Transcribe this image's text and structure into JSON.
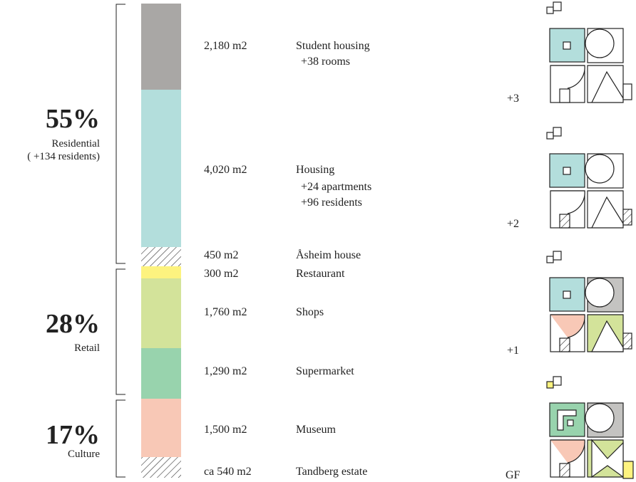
{
  "groups": [
    {
      "percent": "55%",
      "label": "Residential",
      "sublabel": "( +134 residents)"
    },
    {
      "percent": "28%",
      "label": "Retail",
      "sublabel": ""
    },
    {
      "percent": "17%",
      "label": "Culture",
      "sublabel": ""
    }
  ],
  "segments": [
    {
      "area": "2,180 m2",
      "name": "Student housing",
      "notes": [
        "+38 rooms"
      ],
      "color": "#a9a7a5"
    },
    {
      "area": "4,020 m2",
      "name": "Housing",
      "notes": [
        "+24 apartments",
        "+96 residents"
      ],
      "color": "#b3dedc"
    },
    {
      "area": "450 m2",
      "name": "Åsheim house",
      "notes": [],
      "color": "hatch"
    },
    {
      "area": "300 m2",
      "name": "Restaurant",
      "notes": [],
      "color": "#fdf37f"
    },
    {
      "area": "1,760 m2",
      "name": "Shops",
      "notes": [],
      "color": "#d3e39a"
    },
    {
      "area": "1,290 m2",
      "name": "Supermarket",
      "notes": [],
      "color": "#98d3ad"
    },
    {
      "area": "1,500 m2",
      "name": "Museum",
      "notes": [],
      "color": "#f8c8b6"
    },
    {
      "area": "ca 540 m2",
      "name": "Tandberg estate",
      "notes": [],
      "color": "hatch"
    }
  ],
  "floors": [
    {
      "label": "+3"
    },
    {
      "label": "+2"
    },
    {
      "label": "+1"
    },
    {
      "label": "GF"
    }
  ]
}
